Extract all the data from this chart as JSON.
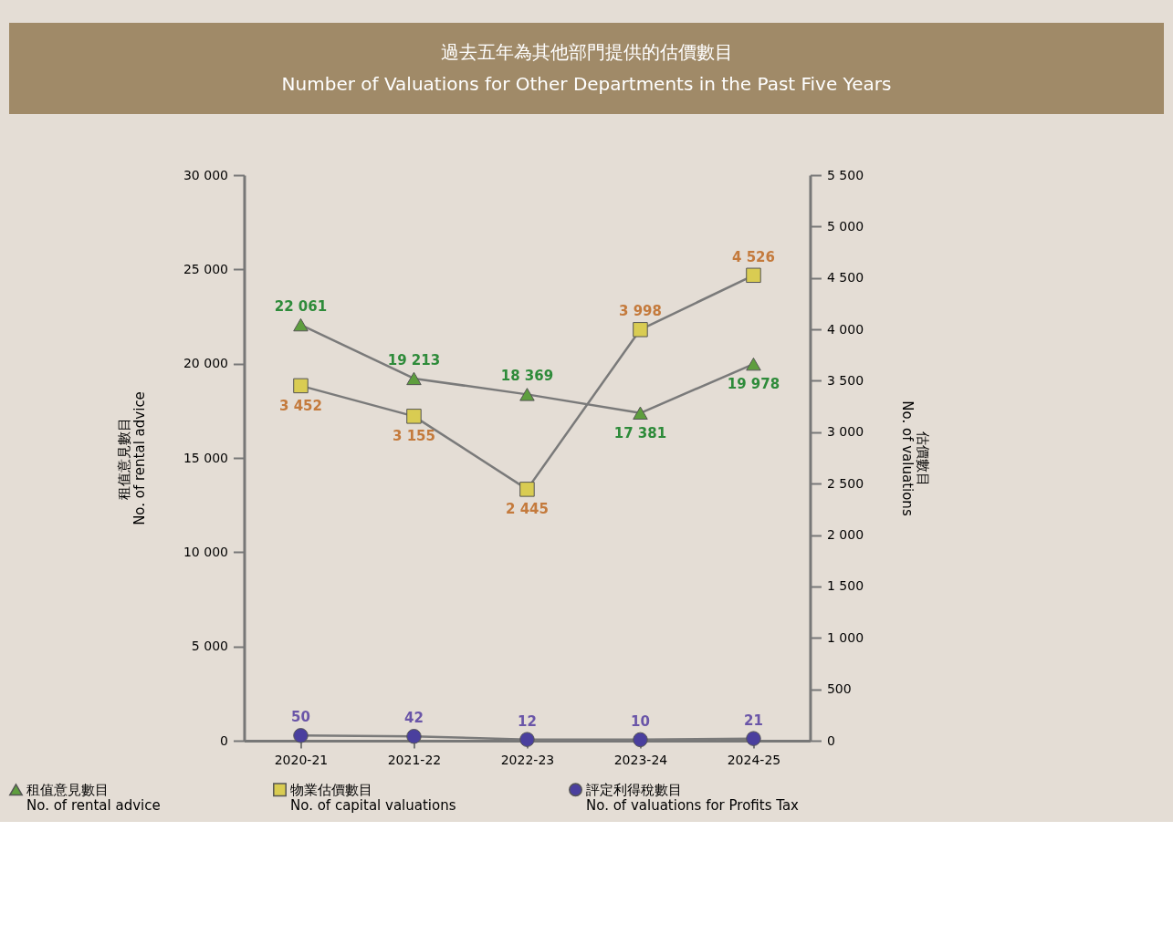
{
  "chart_data": {
    "type": "line",
    "title": "過去五年為其他部門提供的估價數目",
    "subtitle": "Number of Valuations for Other Departments in the Past Five Years",
    "categories": [
      "2020-21",
      "2021-22",
      "2022-23",
      "2023-24",
      "2024-25"
    ],
    "ylabel": "租值意見數目\nNo. of rental advice",
    "y2label": "估價數目\nNo. of valuations",
    "ylim": [
      0,
      30000
    ],
    "yticks": [
      0,
      {
        "value": 5000,
        "label": "5 000"
      },
      {
        "value": 10000,
        "label": "10 000"
      },
      {
        "value": 15000,
        "label": "15 000"
      },
      {
        "value": 20000,
        "label": "20 000"
      },
      {
        "value": 25000,
        "label": "25 000"
      },
      {
        "value": 30000,
        "label": "30 000"
      }
    ],
    "y2lim": [
      0,
      5500
    ],
    "y2ticks": [
      0,
      500,
      {
        "value": 1000,
        "label": "1 000"
      },
      {
        "value": 1500,
        "label": "1 500"
      },
      {
        "value": 2000,
        "label": "2 000"
      },
      {
        "value": 2500,
        "label": "2 500"
      },
      {
        "value": 3000,
        "label": "3 000"
      },
      {
        "value": 3500,
        "label": "3 500"
      },
      {
        "value": 4000,
        "label": "4 000"
      },
      {
        "value": 4500,
        "label": "4 500"
      },
      {
        "value": 5000,
        "label": "5 000"
      },
      {
        "value": 5500,
        "label": "5 500"
      }
    ],
    "series": [
      {
        "name": "租值意見數目\nNo. of rental advice",
        "color": "#5e9e3e",
        "marker": "triangle",
        "values": [
          22061,
          19213,
          18369,
          17381,
          19978
        ],
        "value_labels": [
          "22 061",
          "19 213",
          "18 369",
          "17 381",
          "19 978"
        ]
      },
      {
        "name": "物業估價數目\nNo. of capital valuations",
        "color": "#d9cc52",
        "marker": "square",
        "axis": "y2",
        "values": [
          3452,
          3155,
          2445,
          3998,
          4526
        ],
        "value_labels": [
          "3 452",
          "3 155",
          "2 445",
          "3 998",
          "4 526"
        ]
      },
      {
        "name": "評定利得稅數目\nNo. of valuations for Profits Tax",
        "color": "#4a3f9e",
        "marker": "circle",
        "axis": "y2",
        "values": [
          50,
          42,
          12,
          10,
          21
        ],
        "value_labels": [
          "50",
          "42",
          "12",
          "10",
          "21"
        ]
      }
    ],
    "grid": false,
    "legend": "bottom",
    "line_style": "solid"
  }
}
